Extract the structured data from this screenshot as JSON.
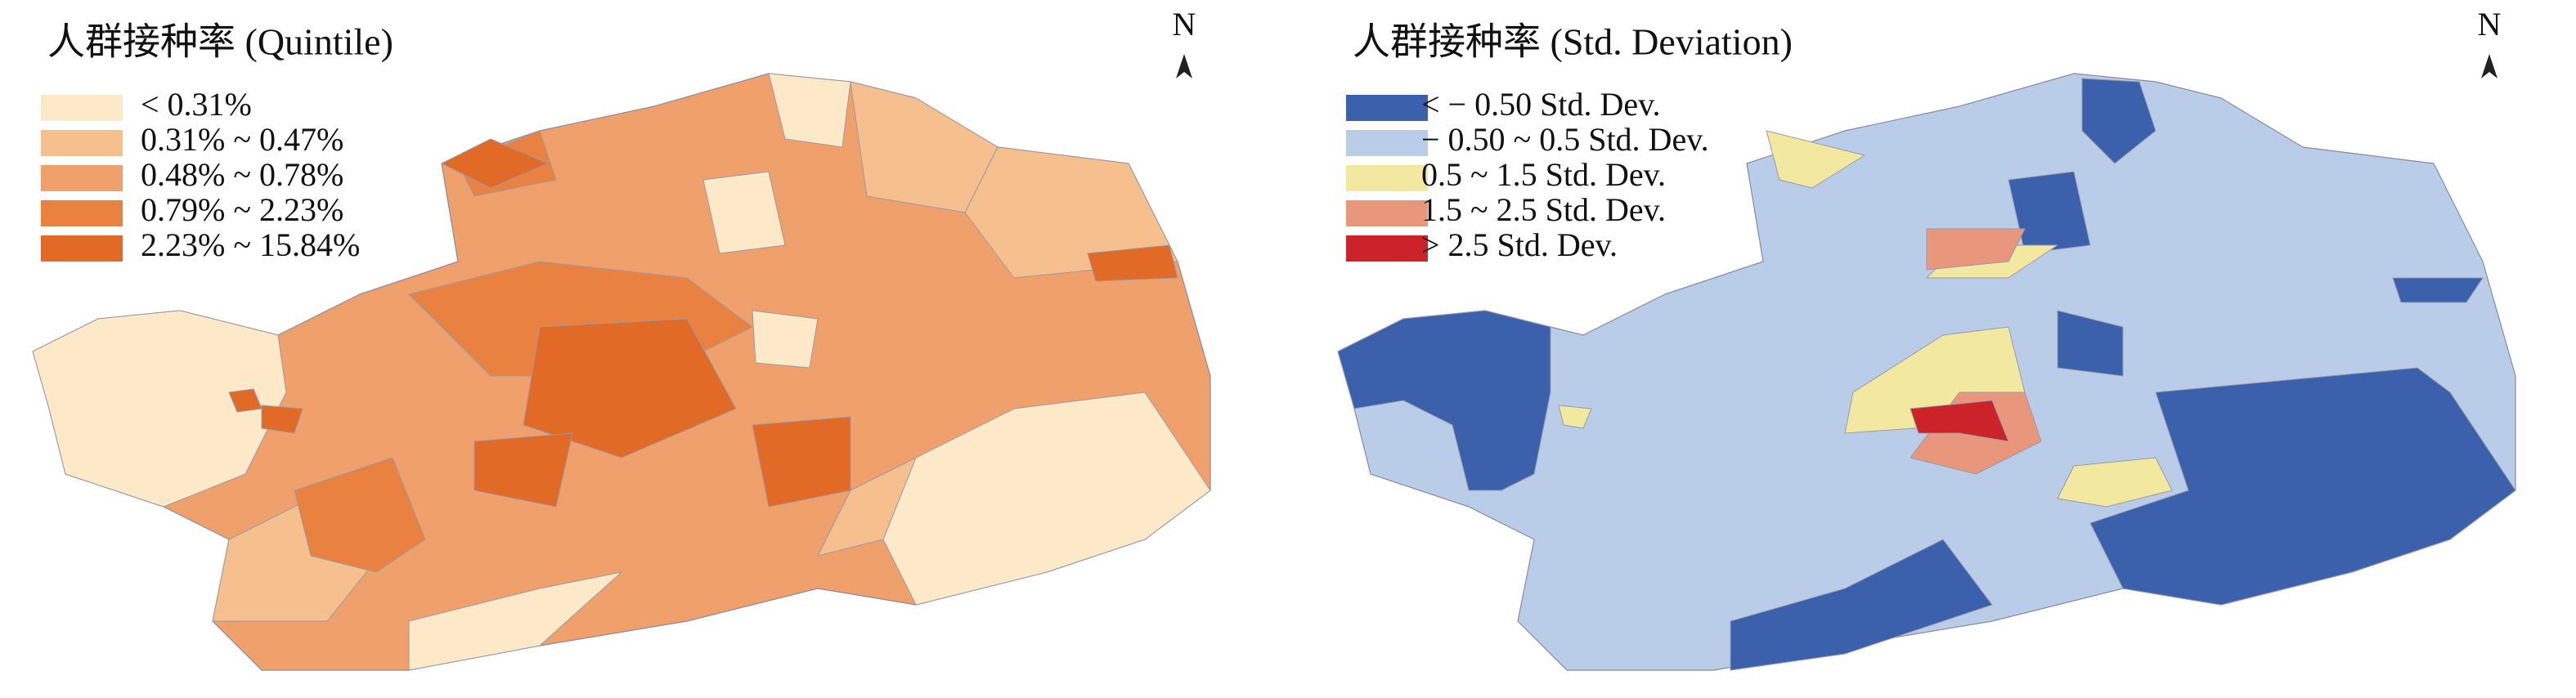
{
  "maps": [
    {
      "title": "人群接种率 (Quintile)",
      "north": "N",
      "legend": [
        {
          "label": "< 0.31%",
          "color": "#fde8c8"
        },
        {
          "label": "0.31% ~ 0.47%",
          "color": "#f6bf8e"
        },
        {
          "label": "0.48% ~ 0.78%",
          "color": "#f0a06a"
        },
        {
          "label": "0.79% ~ 2.23%",
          "color": "#e98241"
        },
        {
          "label": "2.23% ~ 15.84%",
          "color": "#e06a26"
        }
      ]
    },
    {
      "title": "人群接种率 (Std. Deviation)",
      "north": "N",
      "legend": [
        {
          "label": "< − 0.50 Std. Dev.",
          "color": "#3b61ad"
        },
        {
          "label": "− 0.50 ~ 0.5 Std. Dev.",
          "color": "#b9cde9"
        },
        {
          "label": "0.5 ~ 1.5 Std. Dev.",
          "color": "#f3e8a0"
        },
        {
          "label": "1.5 ~ 2.5 Std. Dev.",
          "color": "#e8977d"
        },
        {
          "label": "> 2.5 Std. Dev.",
          "color": "#cc2229"
        }
      ]
    }
  ]
}
